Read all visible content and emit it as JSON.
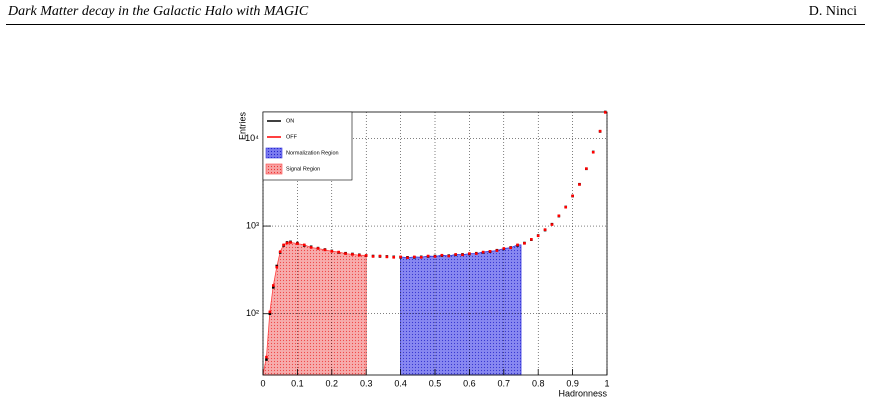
{
  "header": {
    "title": "Dark Matter decay in the Galactic Halo with MAGIC",
    "author": "D. Ninci"
  },
  "chart_data": {
    "type": "scatter",
    "x_label": "Hadronness",
    "y_label": "Entries",
    "log_y": true,
    "grid": true,
    "legend": "top-left",
    "x": [
      0.01,
      0.02,
      0.03,
      0.04,
      0.05,
      0.06,
      0.07,
      0.08,
      0.1,
      0.12,
      0.14,
      0.16,
      0.18,
      0.2,
      0.22,
      0.24,
      0.26,
      0.28,
      0.3,
      0.32,
      0.34,
      0.36,
      0.38,
      0.4,
      0.42,
      0.44,
      0.46,
      0.48,
      0.5,
      0.52,
      0.54,
      0.56,
      0.58,
      0.6,
      0.62,
      0.64,
      0.66,
      0.68,
      0.7,
      0.72,
      0.74,
      0.76,
      0.78,
      0.8,
      0.82,
      0.84,
      0.86,
      0.88,
      0.9,
      0.92,
      0.94,
      0.96,
      0.98,
      0.995
    ],
    "series": [
      {
        "name": "ON",
        "color": "#000000",
        "values": [
          30,
          100,
          200,
          350,
          500,
          600,
          650,
          660,
          640,
          600,
          580,
          560,
          540,
          520,
          500,
          490,
          480,
          470,
          460,
          455,
          450,
          450,
          445,
          440,
          440,
          440,
          445,
          450,
          455,
          460,
          460,
          470,
          475,
          480,
          490,
          500,
          510,
          530,
          550,
          570,
          600,
          640,
          700,
          780,
          900,
          1050,
          1300,
          1650,
          2200,
          3000,
          4500,
          7000,
          12000,
          20000
        ]
      },
      {
        "name": "OFF",
        "color": "#ff0000",
        "values": [
          32,
          105,
          210,
          340,
          510,
          610,
          640,
          650,
          630,
          610,
          570,
          555,
          535,
          515,
          505,
          485,
          475,
          465,
          462,
          450,
          455,
          445,
          440,
          445,
          435,
          445,
          440,
          455,
          450,
          465,
          455,
          475,
          470,
          485,
          485,
          505,
          515,
          525,
          555,
          565,
          610,
          635,
          705,
          775,
          910,
          1040,
          1310,
          1640,
          2210,
          2980,
          4520,
          6950,
          12100,
          19800
        ]
      }
    ],
    "regions": [
      {
        "name": "Normalization Region",
        "color": "#3333dd",
        "range": [
          0.4,
          0.75
        ]
      },
      {
        "name": "Signal Region",
        "color": "#ff4444",
        "range": [
          0,
          0.3
        ]
      }
    ],
    "xlim": [
      0,
      1
    ],
    "xticks": [
      0,
      0.1,
      0.2,
      0.3,
      0.4,
      0.5,
      0.6,
      0.7,
      0.8,
      0.9,
      1
    ],
    "ylim": [
      20,
      20000
    ],
    "yticks": [
      {
        "value": 100,
        "label": "10²"
      },
      {
        "value": 1000,
        "label": "10³"
      },
      {
        "value": 10000,
        "label": "10⁴"
      }
    ]
  }
}
